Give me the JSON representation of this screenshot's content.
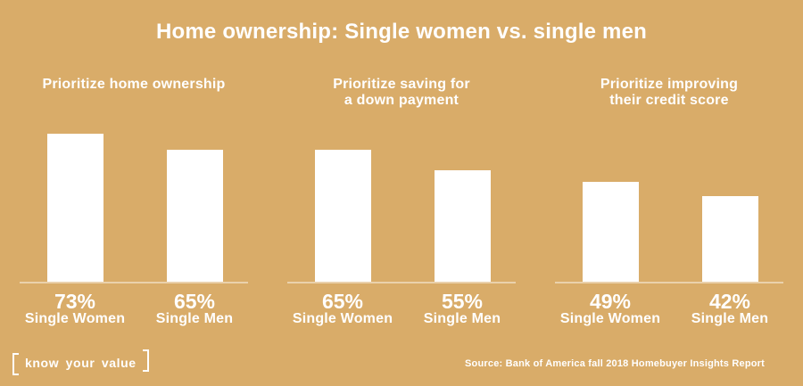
{
  "page": {
    "background_color": "#d9ac69",
    "text_color": "#ffffff",
    "bar_color": "#ffffff"
  },
  "chart_data": {
    "type": "bar",
    "title": "Home ownership: Single women vs. single men",
    "unit": "percent",
    "ylim": [
      0,
      100
    ],
    "grid": false,
    "legend": "none",
    "categories": [
      "Single Women",
      "Single Men"
    ],
    "groups": [
      {
        "title": "Prioritize home ownership",
        "series": [
          {
            "name": "Single Women",
            "value": 73,
            "value_label": "73%"
          },
          {
            "name": "Single Men",
            "value": 65,
            "value_label": "65%"
          }
        ]
      },
      {
        "title": "Prioritize saving for\na down payment",
        "series": [
          {
            "name": "Single Women",
            "value": 65,
            "value_label": "65%"
          },
          {
            "name": "Single Men",
            "value": 55,
            "value_label": "55%"
          }
        ]
      },
      {
        "title": "Prioritize improving\ntheir credit score",
        "series": [
          {
            "name": "Single Women",
            "value": 49,
            "value_label": "49%"
          },
          {
            "name": "Single Men",
            "value": 42,
            "value_label": "42%"
          }
        ]
      }
    ]
  },
  "footer": {
    "logo_text": "know your value",
    "source": "Source: Bank of America fall 2018 Homebuyer Insights Report"
  }
}
